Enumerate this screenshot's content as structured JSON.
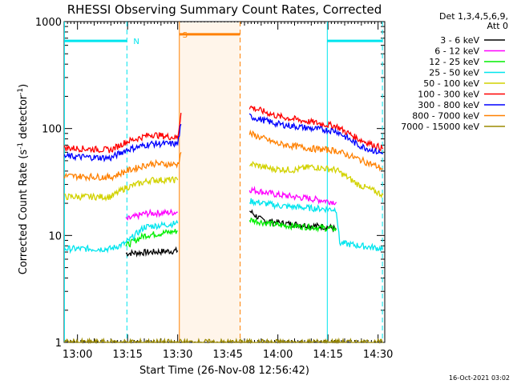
{
  "chart_data": {
    "type": "line",
    "title": "RHESSI Observing Summary Count Rates, Corrected",
    "xlabel": "Start Time (26-Nov-08 12:56:42)",
    "ylabel_main": "Corrected Count Rate (s",
    "ylabel_sup1": "-1",
    "ylabel_mid": " detector",
    "ylabel_sup2": "-1",
    "ylabel_end": ")",
    "yscale": "log",
    "ylim": [
      1,
      1000
    ],
    "xlim_minutes": [
      -4,
      92
    ],
    "x_ticks": [
      {
        "m": 0,
        "label": "13:00"
      },
      {
        "m": 15,
        "label": "13:15"
      },
      {
        "m": 30,
        "label": "13:30"
      },
      {
        "m": 45,
        "label": "13:45"
      },
      {
        "m": 60,
        "label": "14:00"
      },
      {
        "m": 75,
        "label": "14:15"
      },
      {
        "m": 90,
        "label": "14:30"
      }
    ],
    "y_ticks": [
      {
        "v": 1,
        "label": "1"
      },
      {
        "v": 10,
        "label": "10"
      },
      {
        "v": 100,
        "label": "100"
      },
      {
        "v": 1000,
        "label": "1000"
      }
    ],
    "legend_header": [
      "Det 1,3,4,5,6,9,",
      "Att 0"
    ],
    "legend_position": "right",
    "timestamp": "16-Oct-2021 03:02",
    "markers": [
      {
        "label": "N",
        "color": "#00e5ee",
        "start": -3.9,
        "end": 14.8,
        "level": 660
      },
      {
        "label": "S",
        "color": "#ff8000",
        "start": 30.5,
        "end": 48.7,
        "level": 760
      },
      {
        "label": "",
        "color": "#00e5ee",
        "start": 74.8,
        "end": 91.3,
        "level": 660
      }
    ],
    "series": [
      {
        "name": "3 - 6 keV",
        "color": "#000000",
        "segments": [
          [
            [
              14.5,
              6.8
            ],
            [
              30.0,
              7.2
            ]
          ],
          [
            [
              51.5,
              17.0
            ],
            [
              55.0,
              14.0
            ],
            [
              61.0,
              13.0
            ],
            [
              68.0,
              12.5
            ],
            [
              75.0,
              12.0
            ],
            [
              77.5,
              11.5
            ]
          ]
        ]
      },
      {
        "name": "6 - 12 keV",
        "color": "#ff00ff",
        "segments": [
          [
            [
              14.5,
              14.0
            ],
            [
              20.0,
              16.0
            ],
            [
              30.0,
              16.5
            ]
          ],
          [
            [
              51.5,
              27.0
            ],
            [
              60.0,
              24.0
            ],
            [
              70.0,
              22.0
            ],
            [
              77.5,
              20.5
            ]
          ]
        ]
      },
      {
        "name": "12 - 25 keV",
        "color": "#00ee00",
        "segments": [
          [
            [
              14.5,
              8.0
            ],
            [
              20.0,
              10.0
            ],
            [
              30.0,
              11.0
            ]
          ],
          [
            [
              51.5,
              14.0
            ],
            [
              60.0,
              12.5
            ],
            [
              70.0,
              12.0
            ],
            [
              77.5,
              11.5
            ]
          ]
        ]
      },
      {
        "name": "25 - 50 keV",
        "color": "#00e5ee",
        "segments": [
          [
            [
              -3.9,
              7.5
            ],
            [
              10.0,
              7.5
            ],
            [
              14.5,
              8.5
            ],
            [
              20.0,
              12.0
            ],
            [
              30.0,
              13.0
            ]
          ],
          [
            [
              51.5,
              21.0
            ],
            [
              60.0,
              19.0
            ],
            [
              70.0,
              18.0
            ],
            [
              77.5,
              17.5
            ],
            [
              78.5,
              8.5
            ],
            [
              91.5,
              7.5
            ]
          ]
        ]
      },
      {
        "name": "50 - 100 keV",
        "color": "#d2d200",
        "segments": [
          [
            [
              -3.9,
              23.0
            ],
            [
              10.0,
              23.0
            ],
            [
              14.5,
              28.0
            ],
            [
              22.0,
              33.0
            ],
            [
              30.0,
              33.0
            ]
          ],
          [
            [
              51.5,
              47.0
            ],
            [
              58.0,
              42.0
            ],
            [
              65.0,
              41.0
            ],
            [
              70.0,
              44.0
            ],
            [
              77.5,
              41.0
            ],
            [
              84.0,
              30.0
            ],
            [
              91.5,
              24.0
            ]
          ]
        ]
      },
      {
        "name": "100 - 300 keV",
        "color": "#ff0000",
        "segments": [
          [
            [
              -3.9,
              66.0
            ],
            [
              10.0,
              63.0
            ],
            [
              14.5,
              75.0
            ],
            [
              22.0,
              88.0
            ],
            [
              30.0,
              82.0
            ],
            [
              31.0,
              140.0
            ]
          ],
          [
            [
              51.5,
              160.0
            ],
            [
              60.0,
              130.0
            ],
            [
              70.0,
              115.0
            ],
            [
              77.5,
              105.0
            ],
            [
              84.0,
              80.0
            ],
            [
              91.5,
              65.0
            ]
          ]
        ]
      },
      {
        "name": "300 - 800 keV",
        "color": "#0000ff",
        "segments": [
          [
            [
              -3.9,
              55.0
            ],
            [
              10.0,
              53.0
            ],
            [
              14.5,
              63.0
            ],
            [
              22.0,
              72.0
            ],
            [
              30.0,
              72.0
            ],
            [
              31.0,
              110.0
            ]
          ],
          [
            [
              51.5,
              130.0
            ],
            [
              60.0,
              110.0
            ],
            [
              70.0,
              100.0
            ],
            [
              77.5,
              95.0
            ],
            [
              84.0,
              70.0
            ],
            [
              91.5,
              58.0
            ]
          ]
        ]
      },
      {
        "name": "800 - 7000 keV",
        "color": "#ff8000",
        "segments": [
          [
            [
              -3.9,
              36.0
            ],
            [
              10.0,
              35.0
            ],
            [
              14.5,
              40.0
            ],
            [
              22.0,
              47.0
            ],
            [
              30.0,
              46.0
            ],
            [
              31.0,
              60.0
            ]
          ],
          [
            [
              51.5,
              90.0
            ],
            [
              60.0,
              72.0
            ],
            [
              70.0,
              65.0
            ],
            [
              77.5,
              62.0
            ],
            [
              84.0,
              52.0
            ],
            [
              91.5,
              42.0
            ]
          ]
        ]
      },
      {
        "name": "7000 - 15000 keV",
        "color": "#9b8a00",
        "segments": [
          [
            [
              -3.9,
              1.0
            ],
            [
              91.5,
              1.0
            ]
          ]
        ]
      }
    ]
  }
}
